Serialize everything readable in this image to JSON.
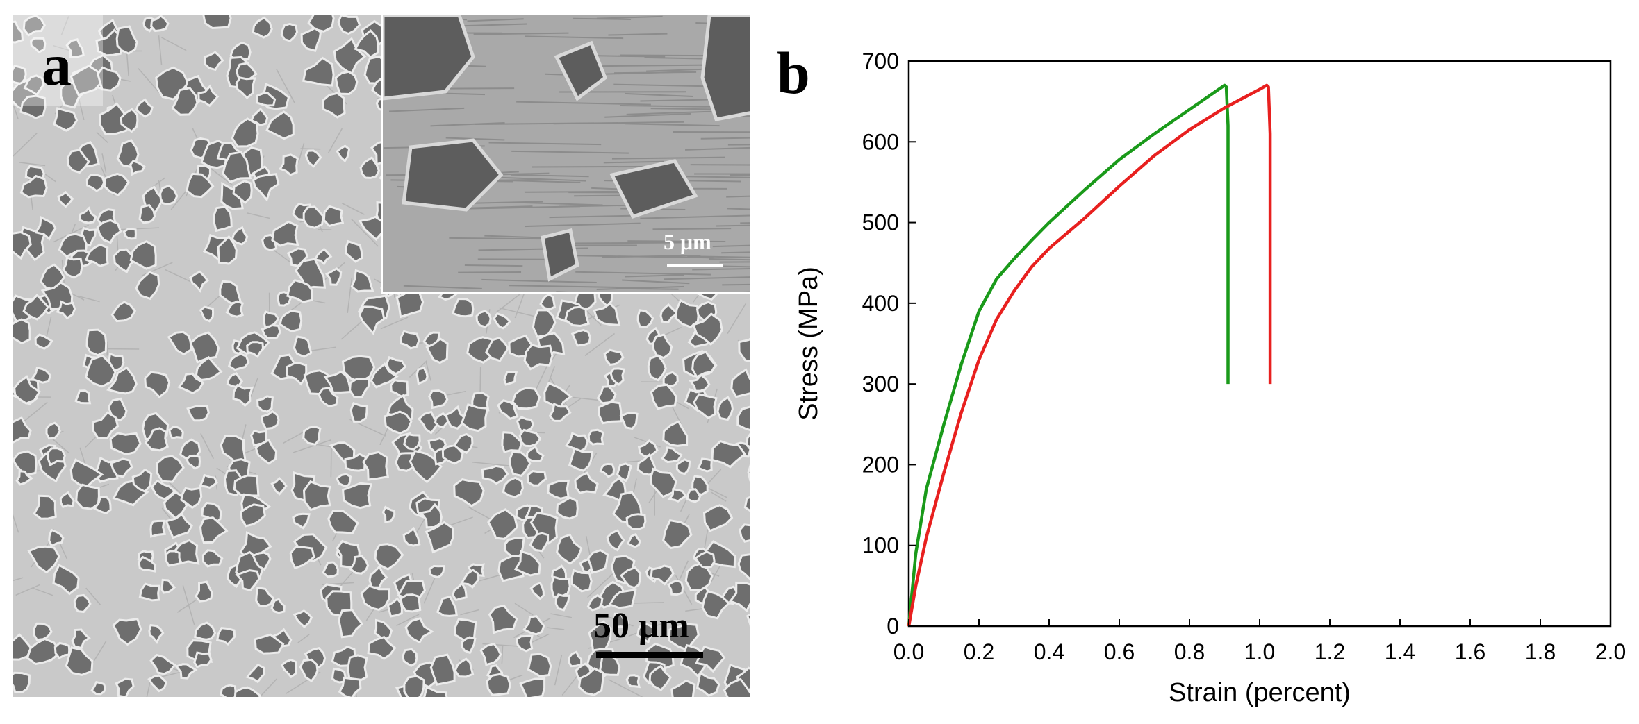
{
  "figure": {
    "panel_a": {
      "letter": "a",
      "scale_bar_label": "50 μm",
      "inset_scale_bar_label": "5 μm",
      "colors": {
        "matrix": "#c9c9c9",
        "grain": "#6e6e6e",
        "boundary": "#ebebeb"
      }
    },
    "panel_b": {
      "letter": "b"
    }
  },
  "chart_data": {
    "type": "line",
    "title": "",
    "xlabel": "Strain (percent)",
    "ylabel": "Stress (MPa)",
    "xlim": [
      0,
      2.0
    ],
    "ylim": [
      0,
      700
    ],
    "xticks": [
      "0.0",
      "0.2",
      "0.4",
      "0.6",
      "0.8",
      "1.0",
      "1.2",
      "1.4",
      "1.6",
      "1.8",
      "2.0"
    ],
    "yticks": [
      "0",
      "100",
      "200",
      "300",
      "400",
      "500",
      "600",
      "700"
    ],
    "grid": false,
    "legend": "none",
    "series": [
      {
        "color": "#1a9a1a",
        "x": [
          0.0,
          0.02,
          0.05,
          0.1,
          0.15,
          0.2,
          0.25,
          0.3,
          0.35,
          0.4,
          0.5,
          0.6,
          0.7,
          0.8,
          0.9,
          0.905,
          0.91,
          0.91
        ],
        "y": [
          0,
          90,
          170,
          250,
          325,
          390,
          430,
          455,
          478,
          500,
          540,
          578,
          610,
          640,
          670,
          668,
          620,
          300
        ]
      },
      {
        "color": "#e8201f",
        "x": [
          0.0,
          0.02,
          0.05,
          0.1,
          0.15,
          0.2,
          0.25,
          0.3,
          0.35,
          0.4,
          0.5,
          0.6,
          0.7,
          0.8,
          0.9,
          1.0,
          1.02,
          1.025,
          1.03,
          1.03
        ],
        "y": [
          0,
          50,
          110,
          190,
          265,
          330,
          380,
          415,
          445,
          468,
          505,
          545,
          583,
          615,
          642,
          665,
          670,
          668,
          610,
          300
        ]
      }
    ]
  }
}
